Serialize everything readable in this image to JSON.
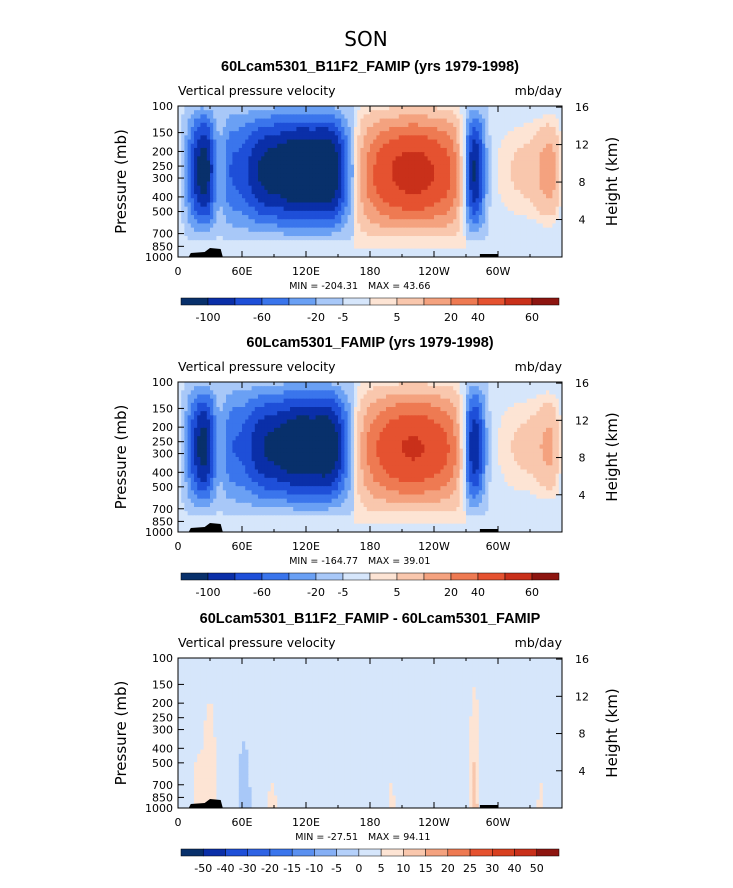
{
  "season": "SON",
  "colors": [
    "#08306b",
    "#0a2fa8",
    "#1e4fd8",
    "#3a75ec",
    "#6aa0f4",
    "#a8c8f8",
    "#d6e6fb",
    "#fde4d4",
    "#f9c7ad",
    "#f4a27f",
    "#ee7a52",
    "#e55230",
    "#c9301a",
    "#8d1510"
  ],
  "chart_data": [
    {
      "type": "heatmap",
      "title": "60Lcam5301_B11F2_FAMIP (yrs 1979-1998)",
      "variable": "Vertical pressure velocity",
      "units": "mb/day",
      "ylabel": "Pressure (mb)",
      "y2label": "Height (km)",
      "xticks": [
        "0",
        "60E",
        "120E",
        "180",
        "120W",
        "60W"
      ],
      "xtick_values": [
        0,
        60,
        120,
        180,
        240,
        300
      ],
      "xlim": [
        0,
        360
      ],
      "yticks": [
        "100",
        "150",
        "200",
        "250",
        "300",
        "400",
        "500",
        "700",
        "850",
        "1000"
      ],
      "ytick_values": [
        100,
        150,
        200,
        250,
        300,
        400,
        500,
        700,
        850,
        1000
      ],
      "ylim": [
        1000,
        100
      ],
      "y2ticks": [
        "4",
        "8",
        "12",
        "16"
      ],
      "y2tick_values": [
        4,
        8,
        12,
        16
      ],
      "min_label": "MIN = -204.31",
      "max_label": "MAX =  43.66",
      "legend_labels": [
        "-100",
        "-60",
        "-20",
        "-5",
        "5",
        "20",
        "40",
        "60"
      ],
      "structures": [
        {
          "lon": 25,
          "width": 18,
          "amp": -1.0
        },
        {
          "lon": 38,
          "width": 6,
          "amp": 0.55
        },
        {
          "lon": 80,
          "width": 18,
          "amp": -0.75
        },
        {
          "lon": 115,
          "width": 16,
          "amp": -0.85
        },
        {
          "lon": 145,
          "width": 14,
          "amp": -0.9
        },
        {
          "lon": 220,
          "width": 40,
          "amp": 0.55
        },
        {
          "lon": 278,
          "width": 8,
          "amp": -1.0
        },
        {
          "lon": 320,
          "width": 16,
          "amp": 0.2
        },
        {
          "lon": 355,
          "width": 14,
          "amp": 0.55
        }
      ]
    },
    {
      "type": "heatmap",
      "title": "60Lcam5301_FAMIP (yrs 1979-1998)",
      "variable": "Vertical pressure velocity",
      "units": "mb/day",
      "ylabel": "Pressure (mb)",
      "y2label": "Height (km)",
      "xticks": [
        "0",
        "60E",
        "120E",
        "180",
        "120W",
        "60W"
      ],
      "xtick_values": [
        0,
        60,
        120,
        180,
        240,
        300
      ],
      "xlim": [
        0,
        360
      ],
      "yticks": [
        "100",
        "150",
        "200",
        "250",
        "300",
        "400",
        "500",
        "700",
        "850",
        "1000"
      ],
      "ytick_values": [
        100,
        150,
        200,
        250,
        300,
        400,
        500,
        700,
        850,
        1000
      ],
      "ylim": [
        1000,
        100
      ],
      "y2ticks": [
        "4",
        "8",
        "12",
        "16"
      ],
      "y2tick_values": [
        4,
        8,
        12,
        16
      ],
      "min_label": "MIN = -164.77",
      "max_label": "MAX =  39.01",
      "legend_labels": [
        "-100",
        "-60",
        "-20",
        "-5",
        "5",
        "20",
        "40",
        "60"
      ],
      "structures": [
        {
          "lon": 25,
          "width": 18,
          "amp": -0.95
        },
        {
          "lon": 38,
          "width": 6,
          "amp": 0.5
        },
        {
          "lon": 80,
          "width": 18,
          "amp": -0.7
        },
        {
          "lon": 115,
          "width": 16,
          "amp": -0.8
        },
        {
          "lon": 145,
          "width": 14,
          "amp": -0.85
        },
        {
          "lon": 220,
          "width": 40,
          "amp": 0.5
        },
        {
          "lon": 278,
          "width": 8,
          "amp": -0.95
        },
        {
          "lon": 320,
          "width": 16,
          "amp": 0.2
        },
        {
          "lon": 355,
          "width": 14,
          "amp": 0.5
        }
      ]
    },
    {
      "type": "heatmap",
      "title": "60Lcam5301_B11F2_FAMIP - 60Lcam5301_FAMIP",
      "variable": "Vertical pressure velocity",
      "units": "mb/day",
      "ylabel": "Pressure (mb)",
      "y2label": "Height (km)",
      "xticks": [
        "0",
        "60E",
        "120E",
        "180",
        "120W",
        "60W"
      ],
      "xtick_values": [
        0,
        60,
        120,
        180,
        240,
        300
      ],
      "xlim": [
        0,
        360
      ],
      "yticks": [
        "100",
        "150",
        "200",
        "250",
        "300",
        "400",
        "500",
        "700",
        "850",
        "1000"
      ],
      "ytick_values": [
        100,
        150,
        200,
        250,
        300,
        400,
        500,
        700,
        850,
        1000
      ],
      "ylim": [
        1000,
        100
      ],
      "y2ticks": [
        "4",
        "8",
        "12",
        "16"
      ],
      "y2tick_values": [
        4,
        8,
        12,
        16
      ],
      "min_label": "MIN = -27.51",
      "max_label": "MAX =  94.11",
      "legend_labels": [
        "-50",
        "-40",
        "-30",
        "-20",
        "-15",
        "-10",
        "-5",
        "0",
        "5",
        "10",
        "15",
        "20",
        "25",
        "30",
        "40",
        "50"
      ],
      "structures": [
        {
          "lon": 18,
          "width": 5,
          "amp": 0.15
        },
        {
          "lon": 30,
          "width": 4,
          "amp": 0.35
        },
        {
          "lon": 62,
          "width": 6,
          "amp": -0.2
        },
        {
          "lon": 88,
          "width": 8,
          "amp": 0.12
        },
        {
          "lon": 200,
          "width": 6,
          "amp": 0.12
        },
        {
          "lon": 278,
          "width": 3,
          "amp": 0.5
        },
        {
          "lon": 340,
          "width": 5,
          "amp": 0.12
        }
      ]
    }
  ]
}
